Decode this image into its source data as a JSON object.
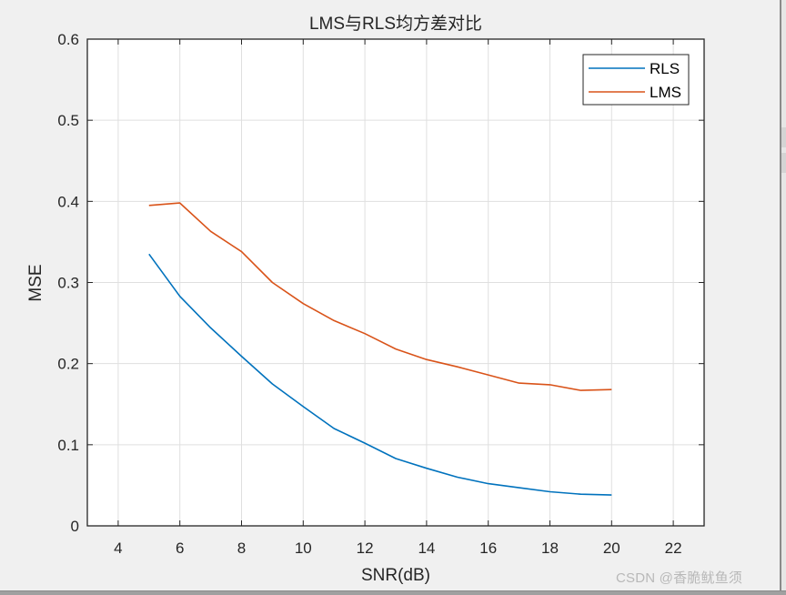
{
  "window": {
    "watermark": "CSDN @香脆鱿鱼须"
  },
  "chart_data": {
    "type": "line",
    "title": "LMS与RLS均方差对比",
    "xlabel": "SNR(dB)",
    "ylabel": "MSE",
    "xlim": [
      3,
      23
    ],
    "ylim": [
      0,
      0.6
    ],
    "xticks": [
      4,
      6,
      8,
      10,
      12,
      14,
      16,
      18,
      20,
      22
    ],
    "yticks": [
      0,
      0.1,
      0.2,
      0.3,
      0.4,
      0.5,
      0.6
    ],
    "xtick_labels": [
      "4",
      "6",
      "8",
      "10",
      "12",
      "14",
      "16",
      "18",
      "20",
      "22"
    ],
    "ytick_labels": [
      "0",
      "0.1",
      "0.2",
      "0.3",
      "0.4",
      "0.5",
      "0.6"
    ],
    "grid": true,
    "legend_position": "northeast",
    "x": [
      5,
      6,
      7,
      8,
      9,
      10,
      11,
      12,
      13,
      14,
      15,
      16,
      17,
      18,
      19,
      20
    ],
    "series": [
      {
        "name": "RLS",
        "color": "#0072bd",
        "values": [
          0.335,
          0.283,
          0.244,
          0.209,
          0.175,
          0.147,
          0.12,
          0.102,
          0.083,
          0.071,
          0.06,
          0.052,
          0.047,
          0.042,
          0.039,
          0.038
        ]
      },
      {
        "name": "LMS",
        "color": "#d95319",
        "values": [
          0.395,
          0.398,
          0.363,
          0.338,
          0.3,
          0.274,
          0.253,
          0.237,
          0.218,
          0.205,
          0.196,
          0.186,
          0.176,
          0.174,
          0.167,
          0.168
        ]
      }
    ]
  }
}
